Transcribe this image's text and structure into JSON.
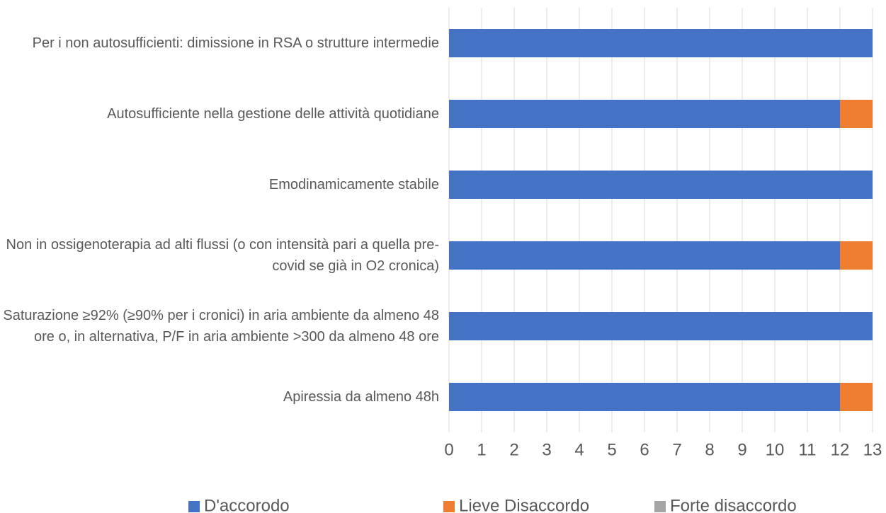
{
  "chart_data": {
    "type": "stacked_barh",
    "categories": [
      "Per i non autosufficienti: dimissione in RSA o strutture intermedie",
      "Autosufficiente nella gestione delle attività quotidiane",
      "Emodinamicamente stabile",
      "Non in ossigenoterapia ad alti flussi (o con intensità pari a quella pre-covid se già in O2 cronica)",
      "Saturazione ≥92% (≥90% per i cronici) in aria ambiente da almeno 48 ore o, in alternativa, P/F in aria ambiente >300 da almeno 48 ore",
      "Apiressia da almeno 48h"
    ],
    "series": [
      {
        "name": "D'accorodo",
        "color": "#4472c4",
        "values": [
          13,
          12,
          13,
          12,
          13,
          12
        ]
      },
      {
        "name": "Lieve Disaccordo",
        "color": "#ed7d31",
        "values": [
          0,
          1,
          0,
          1,
          0,
          1
        ]
      },
      {
        "name": "Forte disaccordo",
        "color": "#a5a5a5",
        "values": [
          0,
          0,
          0,
          0,
          0,
          0
        ]
      }
    ],
    "xlim": [
      0,
      13
    ],
    "xticks": [
      0,
      1,
      2,
      3,
      4,
      5,
      6,
      7,
      8,
      9,
      10,
      11,
      12,
      13
    ],
    "grid": true,
    "legend": "bottom"
  }
}
